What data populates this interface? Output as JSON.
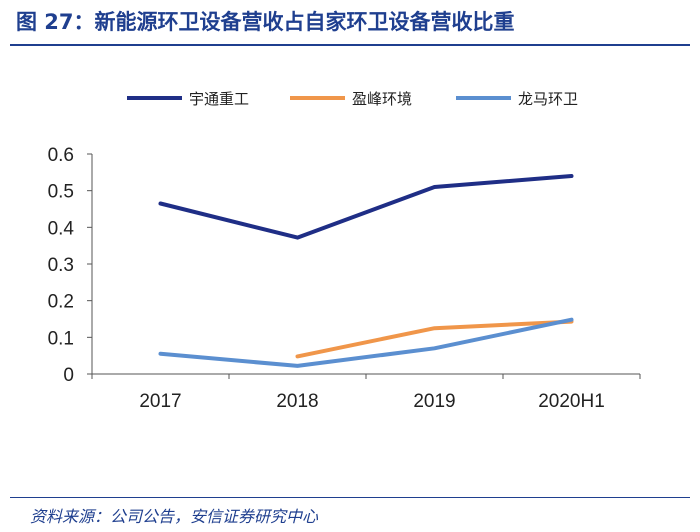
{
  "header": {
    "title": "图 27：新能源环卫设备营收占自家环卫设备营收比重"
  },
  "footer": {
    "source": "资料来源：公司公告，安信证券研究中心"
  },
  "chart_data": {
    "type": "line",
    "title": "",
    "xlabel": "",
    "ylabel": "",
    "categories": [
      "2017",
      "2018",
      "2019",
      "2020H1"
    ],
    "ylim": [
      0,
      0.6
    ],
    "yticks": [
      "0",
      "0.1",
      "0.2",
      "0.3",
      "0.4",
      "0.5",
      "0.6"
    ],
    "grid": false,
    "legend_position": "top",
    "series": [
      {
        "name": "宇通重工",
        "color": "#1f2e86",
        "values": [
          0.465,
          0.372,
          0.51,
          0.54
        ]
      },
      {
        "name": "盈峰环境",
        "color": "#f0964a",
        "values": [
          null,
          0.048,
          0.125,
          0.143
        ]
      },
      {
        "name": "龙马环卫",
        "color": "#5b8fd0",
        "values": [
          0.055,
          0.022,
          0.07,
          0.148
        ]
      }
    ]
  }
}
